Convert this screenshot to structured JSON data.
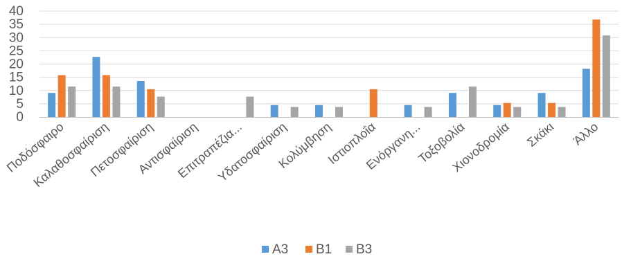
{
  "chart_data": {
    "type": "bar",
    "title": "",
    "xlabel": "",
    "ylabel": "",
    "ylim": [
      0,
      40
    ],
    "yticks": [
      0,
      5,
      10,
      15,
      20,
      25,
      30,
      35,
      40
    ],
    "grid": true,
    "legend_position": "bottom",
    "categories": [
      "Ποδόσφαιρο",
      "Καλαθοσφαίριση",
      "Πετοσφαίριση",
      "Αντισφαίριση",
      "Επιτραπέζια...",
      "Υδατοσφαίριση",
      "Κολύμβηση",
      "Ιστιοπλοΐα",
      "Ενόργανη...",
      "Τοξοβολία",
      "Χιονοδρομία",
      "Σκάκι",
      "Άλλο"
    ],
    "series": [
      {
        "name": "A3",
        "color": "#5B9BD5",
        "values": [
          9.1,
          22.7,
          13.6,
          0,
          0,
          4.5,
          4.5,
          0,
          4.5,
          9.1,
          4.5,
          9.1,
          18.2
        ]
      },
      {
        "name": "B1",
        "color": "#ED7D31",
        "values": [
          15.8,
          15.8,
          10.5,
          0,
          0,
          0,
          0,
          10.5,
          0,
          0,
          5.3,
          5.3,
          36.8
        ]
      },
      {
        "name": "B3",
        "color": "#A5A5A5",
        "values": [
          11.5,
          11.5,
          7.7,
          0,
          7.7,
          3.8,
          3.8,
          0,
          3.8,
          11.5,
          3.8,
          3.8,
          30.8
        ]
      }
    ]
  }
}
